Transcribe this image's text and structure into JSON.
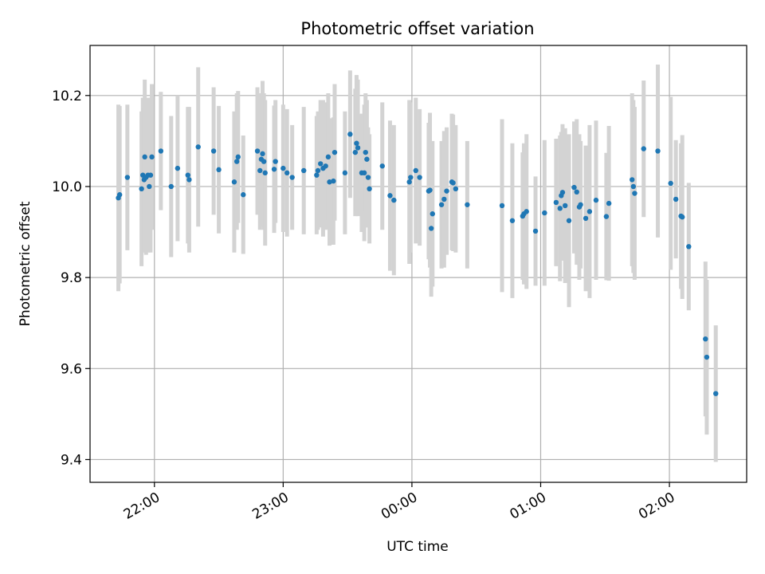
{
  "chart_data": {
    "type": "scatter",
    "title": "Photometric offset variation",
    "xlabel": "UTC time",
    "ylabel": "Photometric offset",
    "x_unit": "hours since 21:00 UTC",
    "xlim": [
      0.5,
      5.6
    ],
    "ylim": [
      9.35,
      10.31
    ],
    "grid": true,
    "x_ticks": [
      {
        "value": 1.0,
        "label": "22:00"
      },
      {
        "value": 2.0,
        "label": "23:00"
      },
      {
        "value": 3.0,
        "label": "00:00"
      },
      {
        "value": 4.0,
        "label": "01:00"
      },
      {
        "value": 5.0,
        "label": "02:00"
      }
    ],
    "y_ticks": [
      {
        "value": 9.4,
        "label": "9.4"
      },
      {
        "value": 9.6,
        "label": "9.6"
      },
      {
        "value": 9.8,
        "label": "9.8"
      },
      {
        "value": 10.0,
        "label": "10.0"
      },
      {
        "value": 10.2,
        "label": "10.2"
      }
    ],
    "marker_color": "#1f77b4",
    "errorbar_color": "#d3d3d3",
    "series": [
      {
        "points": [
          [
            0.72,
            9.975,
            0.205
          ],
          [
            0.73,
            9.982,
            0.195
          ],
          [
            0.79,
            10.02,
            0.16
          ],
          [
            0.9,
            9.995,
            0.17
          ],
          [
            0.91,
            10.025,
            0.17
          ],
          [
            0.92,
            10.015,
            0.16
          ],
          [
            0.925,
            10.065,
            0.17
          ],
          [
            0.935,
            10.02,
            0.17
          ],
          [
            0.95,
            10.025,
            0.17
          ],
          [
            0.96,
            10.0,
            0.14
          ],
          [
            0.97,
            10.025,
            0.17
          ],
          [
            0.98,
            10.065,
            0.16
          ],
          [
            1.05,
            10.078,
            0.13
          ],
          [
            1.13,
            10.0,
            0.155
          ],
          [
            1.18,
            10.04,
            0.16
          ],
          [
            1.26,
            10.025,
            0.15
          ],
          [
            1.27,
            10.015,
            0.16
          ],
          [
            1.34,
            10.087,
            0.175
          ],
          [
            1.46,
            10.078,
            0.14
          ],
          [
            1.5,
            10.037,
            0.14
          ],
          [
            1.62,
            10.01,
            0.155
          ],
          [
            1.64,
            10.055,
            0.15
          ],
          [
            1.65,
            10.065,
            0.145
          ],
          [
            1.69,
            9.982,
            0.13
          ],
          [
            1.8,
            10.078,
            0.14
          ],
          [
            1.82,
            10.035,
            0.13
          ],
          [
            1.83,
            10.06,
            0.145
          ],
          [
            1.84,
            10.072,
            0.16
          ],
          [
            1.85,
            10.055,
            0.15
          ],
          [
            1.86,
            10.03,
            0.16
          ],
          [
            1.93,
            10.038,
            0.14
          ],
          [
            1.94,
            10.055,
            0.135
          ],
          [
            2.0,
            10.04,
            0.14
          ],
          [
            2.03,
            10.03,
            0.14
          ],
          [
            2.07,
            10.02,
            0.115
          ],
          [
            2.16,
            10.035,
            0.14
          ],
          [
            2.26,
            10.025,
            0.13
          ],
          [
            2.27,
            10.035,
            0.13
          ],
          [
            2.29,
            10.05,
            0.14
          ],
          [
            2.31,
            10.04,
            0.15
          ],
          [
            2.33,
            10.045,
            0.14
          ],
          [
            2.35,
            10.065,
            0.14
          ],
          [
            2.36,
            10.01,
            0.14
          ],
          [
            2.39,
            10.012,
            0.14
          ],
          [
            2.4,
            10.075,
            0.15
          ],
          [
            2.48,
            10.03,
            0.135
          ],
          [
            2.52,
            10.115,
            0.14
          ],
          [
            2.56,
            10.075,
            0.14
          ],
          [
            2.57,
            10.095,
            0.15
          ],
          [
            2.58,
            10.085,
            0.15
          ],
          [
            2.61,
            10.03,
            0.13
          ],
          [
            2.63,
            10.03,
            0.15
          ],
          [
            2.64,
            10.075,
            0.13
          ],
          [
            2.65,
            10.06,
            0.13
          ],
          [
            2.66,
            10.02,
            0.11
          ],
          [
            2.67,
            9.995,
            0.12
          ],
          [
            2.77,
            10.045,
            0.14
          ],
          [
            2.83,
            9.98,
            0.165
          ],
          [
            2.86,
            9.97,
            0.165
          ],
          [
            2.98,
            10.01,
            0.18
          ],
          [
            2.99,
            10.02,
            0.165
          ],
          [
            3.03,
            10.035,
            0.16
          ],
          [
            3.06,
            10.02,
            0.15
          ],
          [
            3.13,
            9.99,
            0.15
          ],
          [
            3.14,
            9.992,
            0.17
          ],
          [
            3.15,
            9.908,
            0.15
          ],
          [
            3.16,
            9.94,
            0.16
          ],
          [
            3.23,
            9.96,
            0.14
          ],
          [
            3.25,
            9.972,
            0.15
          ],
          [
            3.27,
            9.99,
            0.14
          ],
          [
            3.31,
            10.01,
            0.15
          ],
          [
            3.32,
            10.008,
            0.15
          ],
          [
            3.34,
            9.995,
            0.14
          ],
          [
            3.43,
            9.96,
            0.14
          ],
          [
            3.7,
            9.958,
            0.19
          ],
          [
            3.78,
            9.925,
            0.17
          ],
          [
            3.86,
            9.935,
            0.14
          ],
          [
            3.87,
            9.94,
            0.155
          ],
          [
            3.89,
            9.945,
            0.17
          ],
          [
            3.96,
            9.902,
            0.12
          ],
          [
            4.03,
            9.942,
            0.16
          ],
          [
            4.12,
            9.965,
            0.14
          ],
          [
            4.15,
            9.952,
            0.16
          ],
          [
            4.16,
            9.98,
            0.14
          ],
          [
            4.17,
            9.987,
            0.15
          ],
          [
            4.19,
            9.958,
            0.17
          ],
          [
            4.22,
            9.925,
            0.19
          ],
          [
            4.26,
            9.998,
            0.145
          ],
          [
            4.28,
            9.988,
            0.16
          ],
          [
            4.3,
            9.955,
            0.16
          ],
          [
            4.31,
            9.96,
            0.14
          ],
          [
            4.35,
            9.93,
            0.16
          ],
          [
            4.38,
            9.945,
            0.19
          ],
          [
            4.43,
            9.97,
            0.175
          ],
          [
            4.51,
            9.934,
            0.14
          ],
          [
            4.53,
            9.963,
            0.17
          ],
          [
            4.71,
            10.015,
            0.19
          ],
          [
            4.72,
            10.0,
            0.19
          ],
          [
            4.73,
            9.985,
            0.19
          ],
          [
            4.8,
            10.083,
            0.15
          ],
          [
            4.91,
            10.078,
            0.19
          ],
          [
            5.01,
            10.007,
            0.19
          ],
          [
            5.05,
            9.972,
            0.13
          ],
          [
            5.09,
            9.935,
            0.16
          ],
          [
            5.1,
            9.933,
            0.18
          ],
          [
            5.15,
            9.868,
            0.14
          ],
          [
            5.28,
            9.665,
            0.17
          ],
          [
            5.29,
            9.625,
            0.17
          ],
          [
            5.36,
            9.545,
            0.15
          ]
        ]
      }
    ]
  }
}
